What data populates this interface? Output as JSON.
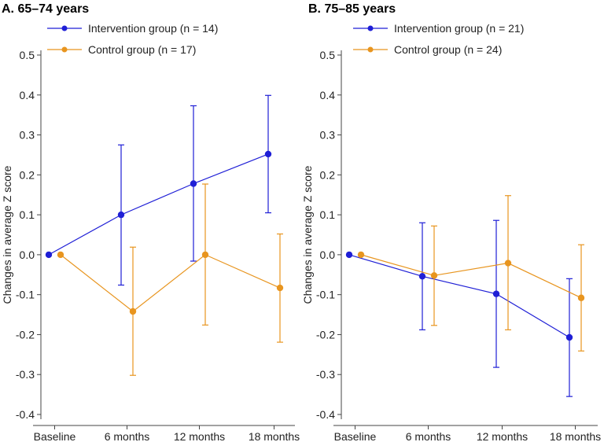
{
  "chart_data": [
    {
      "type": "line",
      "title": "A. 65–74 years",
      "xlabel": "",
      "ylabel": "Changes in average Z score",
      "categories": [
        "Baseline",
        "6 months",
        "12 months",
        "18 months"
      ],
      "ylim": [
        -0.42,
        0.52
      ],
      "yticks": [
        -0.4,
        -0.3,
        -0.2,
        -0.1,
        0.0,
        0.1,
        0.2,
        0.3,
        0.4,
        0.5
      ],
      "ytick_labels": [
        "-0.4",
        "-0.3",
        "-0.2",
        "-0.1",
        "0.0",
        "0.1",
        "0.2",
        "0.3",
        "0.4",
        "0.5"
      ],
      "legend_position": "top-left",
      "series": [
        {
          "name": "Intervention group (n = 14)",
          "color": "#1f1fd6",
          "values": [
            0.0,
            0.1,
            0.178,
            0.252
          ],
          "ci_low": [
            null,
            -0.076,
            -0.016,
            0.105
          ],
          "ci_high": [
            null,
            0.275,
            0.373,
            0.399
          ]
        },
        {
          "name": "Control group (n = 17)",
          "color": "#e8951f",
          "values": [
            0.0,
            -0.142,
            0.0,
            -0.083
          ],
          "ci_low": [
            null,
            -0.302,
            -0.176,
            -0.219
          ],
          "ci_high": [
            null,
            0.019,
            0.177,
            0.052
          ]
        }
      ]
    },
    {
      "type": "line",
      "title": "B. 75–85 years",
      "xlabel": "",
      "ylabel": "Changes in average Z score",
      "categories": [
        "Baseline",
        "6 months",
        "12 months",
        "18 months"
      ],
      "ylim": [
        -0.42,
        0.52
      ],
      "yticks": [
        -0.4,
        -0.3,
        -0.2,
        -0.1,
        0.0,
        0.1,
        0.2,
        0.3,
        0.4,
        0.5
      ],
      "ytick_labels": [
        "-0.4",
        "-0.3",
        "-0.2",
        "-0.1",
        "0.0",
        "0.1",
        "0.2",
        "0.3",
        "0.4",
        "0.5"
      ],
      "legend_position": "top-left",
      "series": [
        {
          "name": "Intervention group (n = 21)",
          "color": "#1f1fd6",
          "values": [
            0.0,
            -0.054,
            -0.098,
            -0.207
          ],
          "ci_low": [
            null,
            -0.188,
            -0.282,
            -0.355
          ],
          "ci_high": [
            null,
            0.08,
            0.086,
            -0.06
          ]
        },
        {
          "name": "Control group (n = 24)",
          "color": "#e8951f",
          "values": [
            0.0,
            -0.052,
            -0.021,
            -0.108
          ],
          "ci_low": [
            null,
            -0.177,
            -0.188,
            -0.241
          ],
          "ci_high": [
            null,
            0.072,
            0.148,
            0.025
          ]
        }
      ]
    }
  ]
}
